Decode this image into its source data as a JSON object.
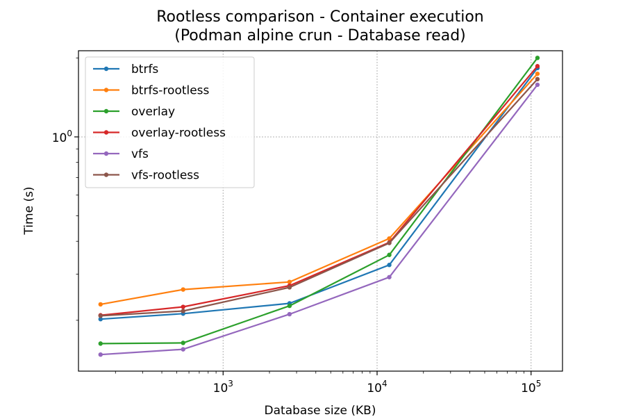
{
  "chart_data": {
    "type": "line",
    "title": [
      "Rootless comparison - Container execution",
      "(Podman alpine crun - Database read)"
    ],
    "xlabel": "Database size (KB)",
    "ylabel": "Time (s)",
    "xscale": "log",
    "yscale": "log",
    "xlim": [
      115,
      160000
    ],
    "ylim": [
      0.128,
      2.13
    ],
    "x_ticks": [
      {
        "value": 1000,
        "base": "10",
        "exp": "3"
      },
      {
        "value": 10000,
        "base": "10",
        "exp": "4"
      },
      {
        "value": 100000,
        "base": "10",
        "exp": "5"
      }
    ],
    "y_ticks": [
      {
        "value": 1.0,
        "base": "10",
        "exp": "0"
      }
    ],
    "grid": true,
    "legend_position": "upper-left",
    "x": [
      160,
      550,
      2700,
      12000,
      110000
    ],
    "series": [
      {
        "name": "btrfs",
        "color": "#1f77b4",
        "values": [
          0.202,
          0.212,
          0.232,
          0.325,
          1.83
        ]
      },
      {
        "name": "btrfs-rootless",
        "color": "#ff7f0e",
        "values": [
          0.23,
          0.262,
          0.28,
          0.41,
          1.74
        ]
      },
      {
        "name": "overlay",
        "color": "#2ca02c",
        "values": [
          0.163,
          0.164,
          0.227,
          0.355,
          2.0
        ]
      },
      {
        "name": "overlay-rootless",
        "color": "#d62728",
        "values": [
          0.209,
          0.225,
          0.271,
          0.396,
          1.86
        ]
      },
      {
        "name": "vfs",
        "color": "#9467bd",
        "values": [
          0.148,
          0.155,
          0.211,
          0.292,
          1.58
        ]
      },
      {
        "name": "vfs-rootless",
        "color": "#8c564b",
        "values": [
          0.208,
          0.217,
          0.267,
          0.394,
          1.66
        ]
      }
    ]
  }
}
